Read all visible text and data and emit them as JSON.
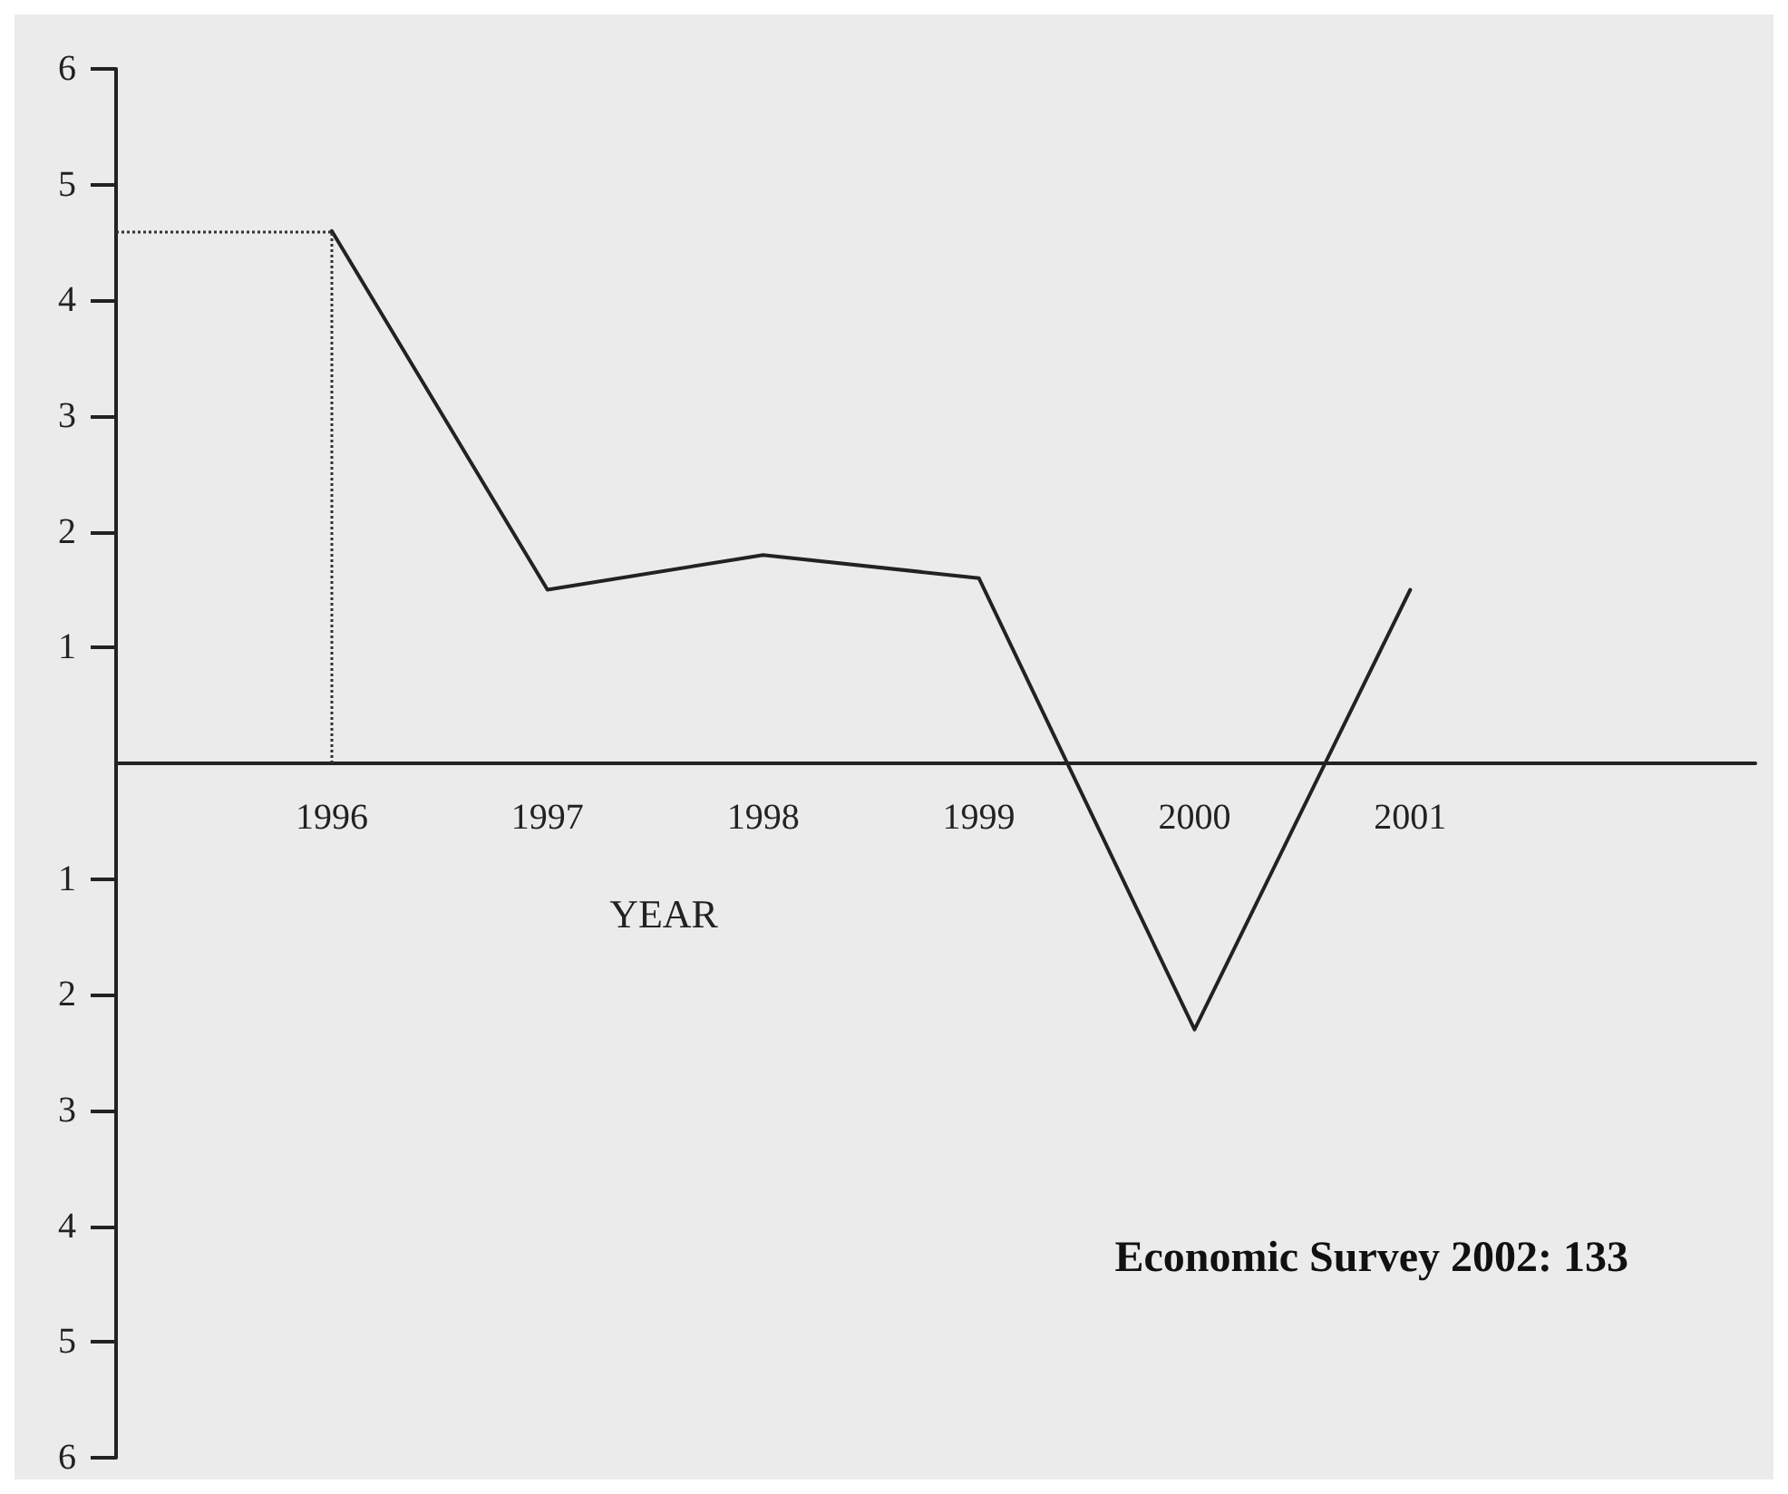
{
  "chart_data": {
    "type": "line",
    "xlabel": "YEAR",
    "x": [
      1996,
      1997,
      1998,
      1999,
      2000,
      2001
    ],
    "series": [
      {
        "color": "#222222",
        "values": [
          4.6,
          1.5,
          1.8,
          1.6,
          -2.3,
          1.5
        ]
      }
    ],
    "xlim": [
      1995,
      2002.6
    ],
    "xticks": [
      1996,
      1997,
      1998,
      1999,
      2000,
      2001
    ],
    "ylim": [
      -6,
      6
    ],
    "yticks": [
      {
        "value": -6,
        "label": "6"
      },
      {
        "value": -5,
        "label": "5"
      },
      {
        "value": -4,
        "label": "4"
      },
      {
        "value": -3,
        "label": "3"
      },
      {
        "value": -2,
        "label": "2"
      },
      {
        "value": -1,
        "label": "1"
      },
      1,
      2,
      3,
      4,
      5,
      6
    ],
    "ref_lines": [
      {
        "axis": "y",
        "value": 4.6,
        "line_style": "dotted",
        "color": "#333333"
      },
      {
        "axis": "x",
        "value": 1996,
        "line_style": "dotted",
        "color": "#333333"
      }
    ],
    "annotations": [
      "Economic Survey 2002: 133"
    ],
    "grid": false,
    "marker": "none",
    "line_style": "solid"
  }
}
